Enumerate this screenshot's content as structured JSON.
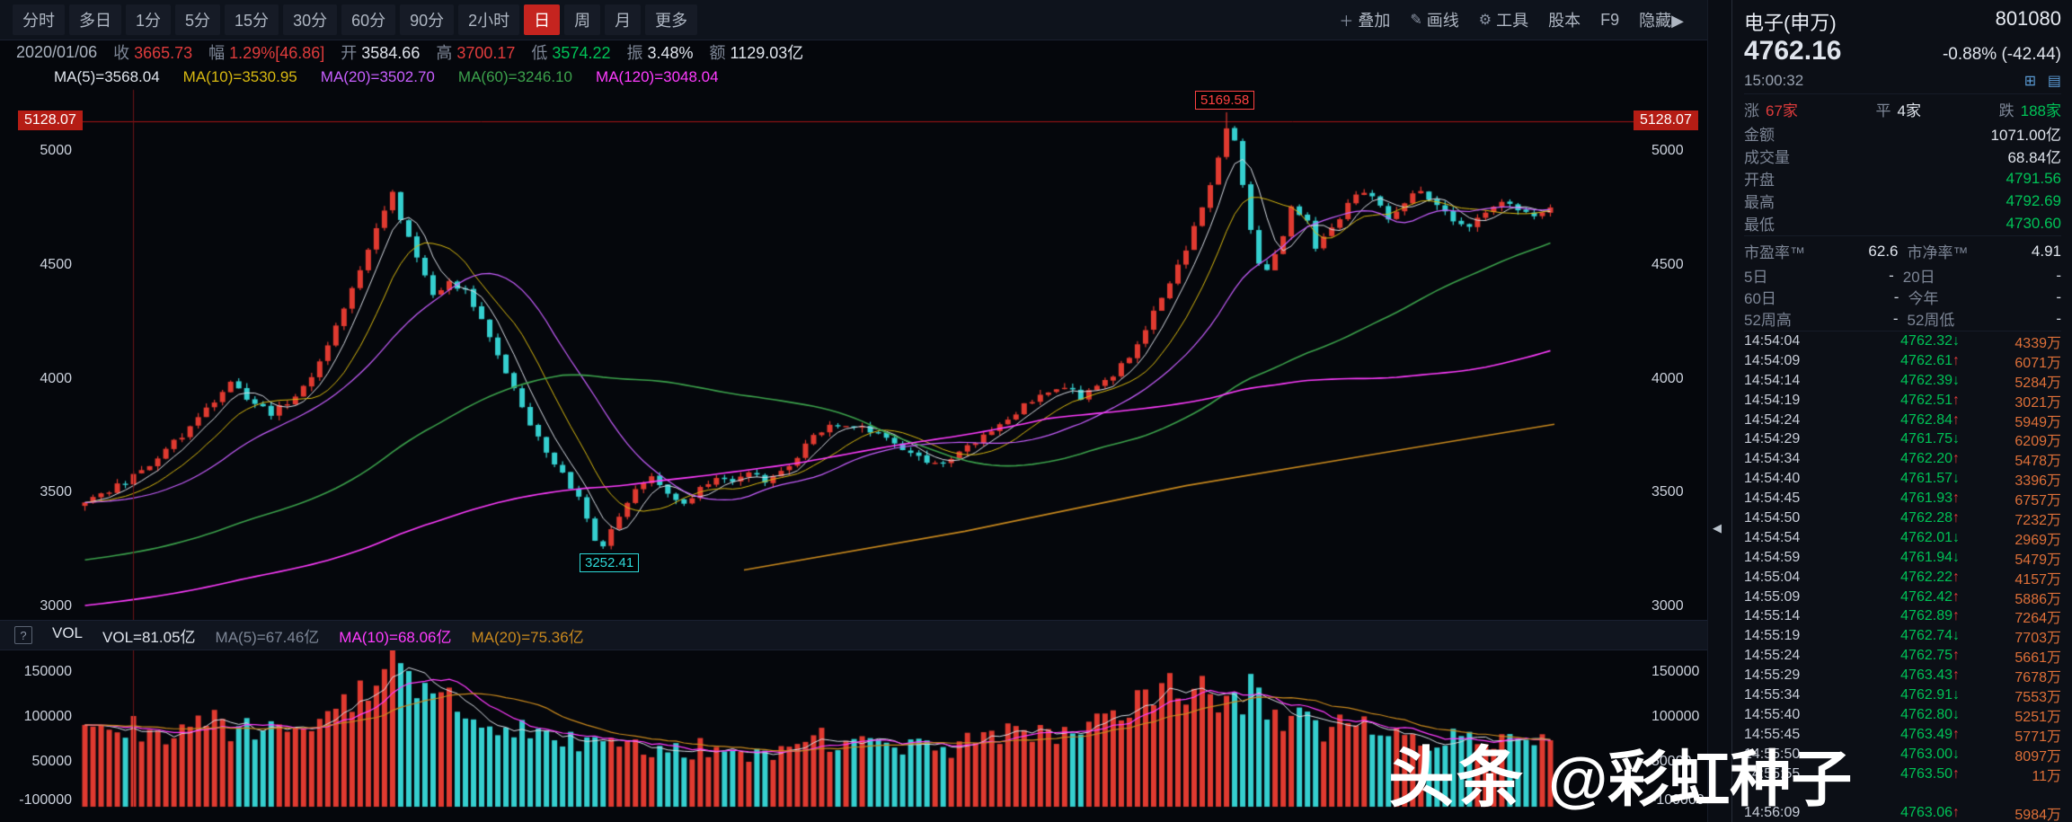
{
  "colors": {
    "red": "#e03c3c",
    "green": "#00c357",
    "cyan": "#2bc8c8",
    "yellow": "#d8b911",
    "purple": "#c85fff",
    "magenta": "#ff3cff",
    "orange": "#c9891e",
    "white": "#dfe4ec",
    "gray": "#7d8696",
    "ma_green": "#3ca24c",
    "vol_orange": "#df7038",
    "ref_red": "#b51d15",
    "panel_blue": "#5b9bd5",
    "candle_red": "#e03a30",
    "candle_cyan": "#35cfcf"
  },
  "icons": {
    "help": "?",
    "collapse": "◀",
    "chart_mini": "⊞",
    "layout": "▤"
  },
  "toolbar": {
    "tabs": [
      "分时",
      "多日",
      "1分",
      "5分",
      "15分",
      "30分",
      "60分",
      "90分",
      "2小时",
      "日",
      "周",
      "月",
      "更多"
    ],
    "active_index": 9,
    "right": [
      {
        "icon": "＋",
        "icon_name": "overlay-plus-icon",
        "label": "叠加"
      },
      {
        "icon": "✎",
        "icon_name": "pencil-icon",
        "label": "画线"
      },
      {
        "icon": "⚙",
        "icon_name": "gear-icon",
        "label": "工具"
      },
      {
        "icon": "",
        "icon_name": "",
        "label": "股本"
      },
      {
        "icon": "",
        "icon_name": "",
        "label": "F9"
      },
      {
        "icon": "",
        "icon_name": "",
        "label": "隐藏▶"
      }
    ]
  },
  "info_bar": {
    "date": "2020/01/06",
    "fields": [
      {
        "label": "收",
        "value": "3665.73",
        "color": "red"
      },
      {
        "label": "幅",
        "value": "1.29%[46.86]",
        "color": "red"
      },
      {
        "label": "开",
        "value": "3584.66",
        "color": "white"
      },
      {
        "label": "高",
        "value": "3700.17",
        "color": "red"
      },
      {
        "label": "低",
        "value": "3574.22",
        "color": "green"
      },
      {
        "label": "振",
        "value": "3.48%",
        "color": "white"
      },
      {
        "label": "额",
        "value": "1129.03亿",
        "color": "white"
      }
    ]
  },
  "ma_bar": [
    {
      "label": "MA(5)=3568.04",
      "color": "white"
    },
    {
      "label": "MA(10)=3530.95",
      "color": "yellow"
    },
    {
      "label": "MA(20)=3502.70",
      "color": "purple"
    },
    {
      "label": "MA(60)=3246.10",
      "color": "ma_green"
    },
    {
      "label": "MA(120)=3048.04",
      "color": "magenta"
    }
  ],
  "price_axis": {
    "ref_label": "5128.07",
    "ticks": [
      "5000",
      "4500",
      "4000",
      "3500",
      "3000"
    ],
    "tick_values": [
      5000,
      4500,
      4000,
      3500,
      3000
    ]
  },
  "vol_axis": {
    "labels": [
      "150000",
      "100000",
      "50000",
      "-100000"
    ]
  },
  "vol_bar": {
    "items": [
      {
        "label": "VOL",
        "color": "white"
      },
      {
        "label": "VOL=81.05亿",
        "color": "white"
      },
      {
        "label": "MA(5)=67.46亿",
        "color": "gray"
      },
      {
        "label": "MA(10)=68.06亿",
        "color": "magenta"
      },
      {
        "label": "MA(20)=75.36亿",
        "color": "orange"
      }
    ]
  },
  "annotations": {
    "peak": "5169.58",
    "trough": "3252.41"
  },
  "chart_data": {
    "type": "candlestick+volume",
    "title": "电子(申万) 801080 日K",
    "num_candles": 182,
    "price_axis_ticks": [
      5000,
      4500,
      4000,
      3500,
      3000
    ],
    "ref_line": 5128.07,
    "peak": {
      "index": 141,
      "high": 5169.58
    },
    "trough": {
      "index": 64,
      "low": 3252.41
    },
    "crosshair_index": 6,
    "price_keypoints": [
      [
        0,
        3470
      ],
      [
        2,
        3490
      ],
      [
        5,
        3545
      ],
      [
        8,
        3620
      ],
      [
        11,
        3720
      ],
      [
        14,
        3820
      ],
      [
        17,
        3940
      ],
      [
        18,
        3985
      ],
      [
        20,
        3905
      ],
      [
        23,
        3845
      ],
      [
        26,
        3920
      ],
      [
        28,
        4020
      ],
      [
        30,
        4150
      ],
      [
        32,
        4300
      ],
      [
        34,
        4480
      ],
      [
        36,
        4650
      ],
      [
        38,
        4830
      ],
      [
        39,
        4700
      ],
      [
        41,
        4520
      ],
      [
        43,
        4360
      ],
      [
        45,
        4430
      ],
      [
        47,
        4380
      ],
      [
        49,
        4250
      ],
      [
        51,
        4100
      ],
      [
        53,
        3950
      ],
      [
        55,
        3800
      ],
      [
        57,
        3680
      ],
      [
        59,
        3580
      ],
      [
        61,
        3470
      ],
      [
        63,
        3300
      ],
      [
        64,
        3270
      ],
      [
        66,
        3390
      ],
      [
        68,
        3510
      ],
      [
        70,
        3570
      ],
      [
        72,
        3500
      ],
      [
        74,
        3450
      ],
      [
        76,
        3525
      ],
      [
        78,
        3560
      ],
      [
        80,
        3540
      ],
      [
        82,
        3585
      ],
      [
        84,
        3550
      ],
      [
        86,
        3605
      ],
      [
        88,
        3655
      ],
      [
        90,
        3760
      ],
      [
        93,
        3800
      ],
      [
        96,
        3780
      ],
      [
        99,
        3745
      ],
      [
        101,
        3700
      ],
      [
        104,
        3630
      ],
      [
        106,
        3615
      ],
      [
        109,
        3700
      ],
      [
        112,
        3780
      ],
      [
        115,
        3855
      ],
      [
        118,
        3930
      ],
      [
        121,
        3960
      ],
      [
        123,
        3920
      ],
      [
        126,
        3985
      ],
      [
        128,
        4055
      ],
      [
        130,
        4150
      ],
      [
        132,
        4300
      ],
      [
        134,
        4430
      ],
      [
        136,
        4560
      ],
      [
        138,
        4760
      ],
      [
        140,
        4960
      ],
      [
        141,
        5100
      ],
      [
        142,
        5040
      ],
      [
        143,
        4860
      ],
      [
        144,
        4660
      ],
      [
        145,
        4500
      ],
      [
        146,
        4480
      ],
      [
        148,
        4630
      ],
      [
        149,
        4750
      ],
      [
        151,
        4700
      ],
      [
        152,
        4560
      ],
      [
        153,
        4610
      ],
      [
        155,
        4700
      ],
      [
        157,
        4820
      ],
      [
        159,
        4800
      ],
      [
        161,
        4710
      ],
      [
        163,
        4780
      ],
      [
        165,
        4820
      ],
      [
        167,
        4760
      ],
      [
        169,
        4700
      ],
      [
        171,
        4660
      ],
      [
        173,
        4730
      ],
      [
        175,
        4780
      ],
      [
        177,
        4740
      ],
      [
        179,
        4710
      ],
      [
        181,
        4762
      ]
    ],
    "volume_keypoints": [
      [
        0,
        85000
      ],
      [
        4,
        95000
      ],
      [
        8,
        78000
      ],
      [
        12,
        82000
      ],
      [
        16,
        92000
      ],
      [
        20,
        84000
      ],
      [
        24,
        92000
      ],
      [
        28,
        100000
      ],
      [
        31,
        108000
      ],
      [
        34,
        120000
      ],
      [
        36,
        135000
      ],
      [
        38,
        155000
      ],
      [
        40,
        140000
      ],
      [
        43,
        122000
      ],
      [
        46,
        110000
      ],
      [
        49,
        100000
      ],
      [
        52,
        92000
      ],
      [
        55,
        86000
      ],
      [
        58,
        76000
      ],
      [
        61,
        70000
      ],
      [
        64,
        66000
      ],
      [
        67,
        71000
      ],
      [
        70,
        65000
      ],
      [
        73,
        60000
      ],
      [
        76,
        66000
      ],
      [
        79,
        61000
      ],
      [
        82,
        56000
      ],
      [
        85,
        61000
      ],
      [
        88,
        66000
      ],
      [
        91,
        76000
      ],
      [
        94,
        70000
      ],
      [
        97,
        66000
      ],
      [
        100,
        71000
      ],
      [
        103,
        66000
      ],
      [
        106,
        61000
      ],
      [
        109,
        70000
      ],
      [
        112,
        76000
      ],
      [
        115,
        81000
      ],
      [
        118,
        86000
      ],
      [
        121,
        81000
      ],
      [
        124,
        86000
      ],
      [
        127,
        96000
      ],
      [
        130,
        110000
      ],
      [
        133,
        125000
      ],
      [
        136,
        136000
      ],
      [
        138,
        130000
      ],
      [
        140,
        126000
      ],
      [
        142,
        120000
      ],
      [
        144,
        130000
      ],
      [
        146,
        112000
      ],
      [
        148,
        101000
      ],
      [
        150,
        96000
      ],
      [
        152,
        91000
      ],
      [
        154,
        86000
      ],
      [
        156,
        91000
      ],
      [
        158,
        86000
      ],
      [
        160,
        81000
      ],
      [
        162,
        86000
      ],
      [
        164,
        81000
      ],
      [
        166,
        76000
      ],
      [
        168,
        81000
      ],
      [
        170,
        76000
      ],
      [
        172,
        71000
      ],
      [
        174,
        76000
      ],
      [
        176,
        71000
      ],
      [
        178,
        76000
      ],
      [
        181,
        81000
      ]
    ],
    "ma_pads": {
      "ma60": 3200,
      "ma120": 3000
    },
    "long_ma_keypoints": [
      [
        0.45,
        3160
      ],
      [
        0.6,
        3330
      ],
      [
        0.75,
        3530
      ],
      [
        0.87,
        3660
      ],
      [
        1.0,
        3800
      ]
    ]
  },
  "right_panel": {
    "name": "电子(申万)",
    "code": "801080",
    "price": "4762.16",
    "change": "-0.88% (-42.44)",
    "time": "15:00:32",
    "updown": {
      "up_label": "涨",
      "up": "67家",
      "flat_label": "平",
      "flat": "4家",
      "down_label": "跌",
      "down": "188家"
    },
    "stats": [
      {
        "label": "金额",
        "value": "1071.00亿",
        "color": "white"
      },
      {
        "label": "成交量",
        "value": "68.84亿",
        "color": "white"
      },
      {
        "label": "开盘",
        "value": "4791.56",
        "color": "green"
      },
      {
        "label": "最高",
        "value": "4792.69",
        "color": "green"
      },
      {
        "label": "最低",
        "value": "4730.60",
        "color": "green"
      }
    ],
    "ratios": [
      {
        "label": "市盈率™",
        "value": "62.6"
      },
      {
        "label": "市净率™",
        "value": "4.91"
      }
    ],
    "periods": [
      {
        "label": "5日",
        "value": "-"
      },
      {
        "label": "20日",
        "value": "-"
      },
      {
        "label": "60日",
        "value": "-"
      },
      {
        "label": "今年",
        "value": "-"
      },
      {
        "label": "52周高",
        "value": "-"
      },
      {
        "label": "52周低",
        "value": "-"
      }
    ],
    "ticks": [
      {
        "time": "14:54:04",
        "price": "4762.32",
        "dir": "down",
        "vol": "4339万"
      },
      {
        "time": "14:54:09",
        "price": "4762.61",
        "dir": "up",
        "vol": "6071万"
      },
      {
        "time": "14:54:14",
        "price": "4762.39",
        "dir": "down",
        "vol": "5284万"
      },
      {
        "time": "14:54:19",
        "price": "4762.51",
        "dir": "up",
        "vol": "3021万"
      },
      {
        "time": "14:54:24",
        "price": "4762.84",
        "dir": "up",
        "vol": "5949万"
      },
      {
        "time": "14:54:29",
        "price": "4761.75",
        "dir": "down",
        "vol": "6209万"
      },
      {
        "time": "14:54:34",
        "price": "4762.20",
        "dir": "up",
        "vol": "5478万"
      },
      {
        "time": "14:54:40",
        "price": "4761.57",
        "dir": "down",
        "vol": "3396万"
      },
      {
        "time": "14:54:45",
        "price": "4761.93",
        "dir": "up",
        "vol": "6757万"
      },
      {
        "time": "14:54:50",
        "price": "4762.28",
        "dir": "up",
        "vol": "7232万"
      },
      {
        "time": "14:54:54",
        "price": "4762.01",
        "dir": "down",
        "vol": "2969万"
      },
      {
        "time": "14:54:59",
        "price": "4761.94",
        "dir": "down",
        "vol": "5479万"
      },
      {
        "time": "14:55:04",
        "price": "4762.22",
        "dir": "up",
        "vol": "4157万"
      },
      {
        "time": "14:55:09",
        "price": "4762.42",
        "dir": "up",
        "vol": "5886万"
      },
      {
        "time": "14:55:14",
        "price": "4762.89",
        "dir": "up",
        "vol": "7264万"
      },
      {
        "time": "14:55:19",
        "price": "4762.74",
        "dir": "down",
        "vol": "7703万"
      },
      {
        "time": "14:55:24",
        "price": "4762.75",
        "dir": "up",
        "vol": "5661万"
      },
      {
        "time": "14:55:29",
        "price": "4763.43",
        "dir": "up",
        "vol": "7678万"
      },
      {
        "time": "14:55:34",
        "price": "4762.91",
        "dir": "down",
        "vol": "7553万"
      },
      {
        "time": "14:55:40",
        "price": "4762.80",
        "dir": "down",
        "vol": "5251万"
      },
      {
        "time": "14:55:45",
        "price": "4763.49",
        "dir": "up",
        "vol": "5771万"
      },
      {
        "time": "14:55:50",
        "price": "4763.00",
        "dir": "down",
        "vol": "8097万"
      },
      {
        "time": "14:55:55",
        "price": "4763.50",
        "dir": "up",
        "vol": "11万"
      },
      {
        "time": "",
        "price": "",
        "dir": "",
        "vol": ""
      },
      {
        "time": "14:56:09",
        "price": "4763.06",
        "dir": "up",
        "vol": "5984万"
      }
    ]
  },
  "watermark": {
    "logo": "头条",
    "handle": "@彩虹种子"
  }
}
